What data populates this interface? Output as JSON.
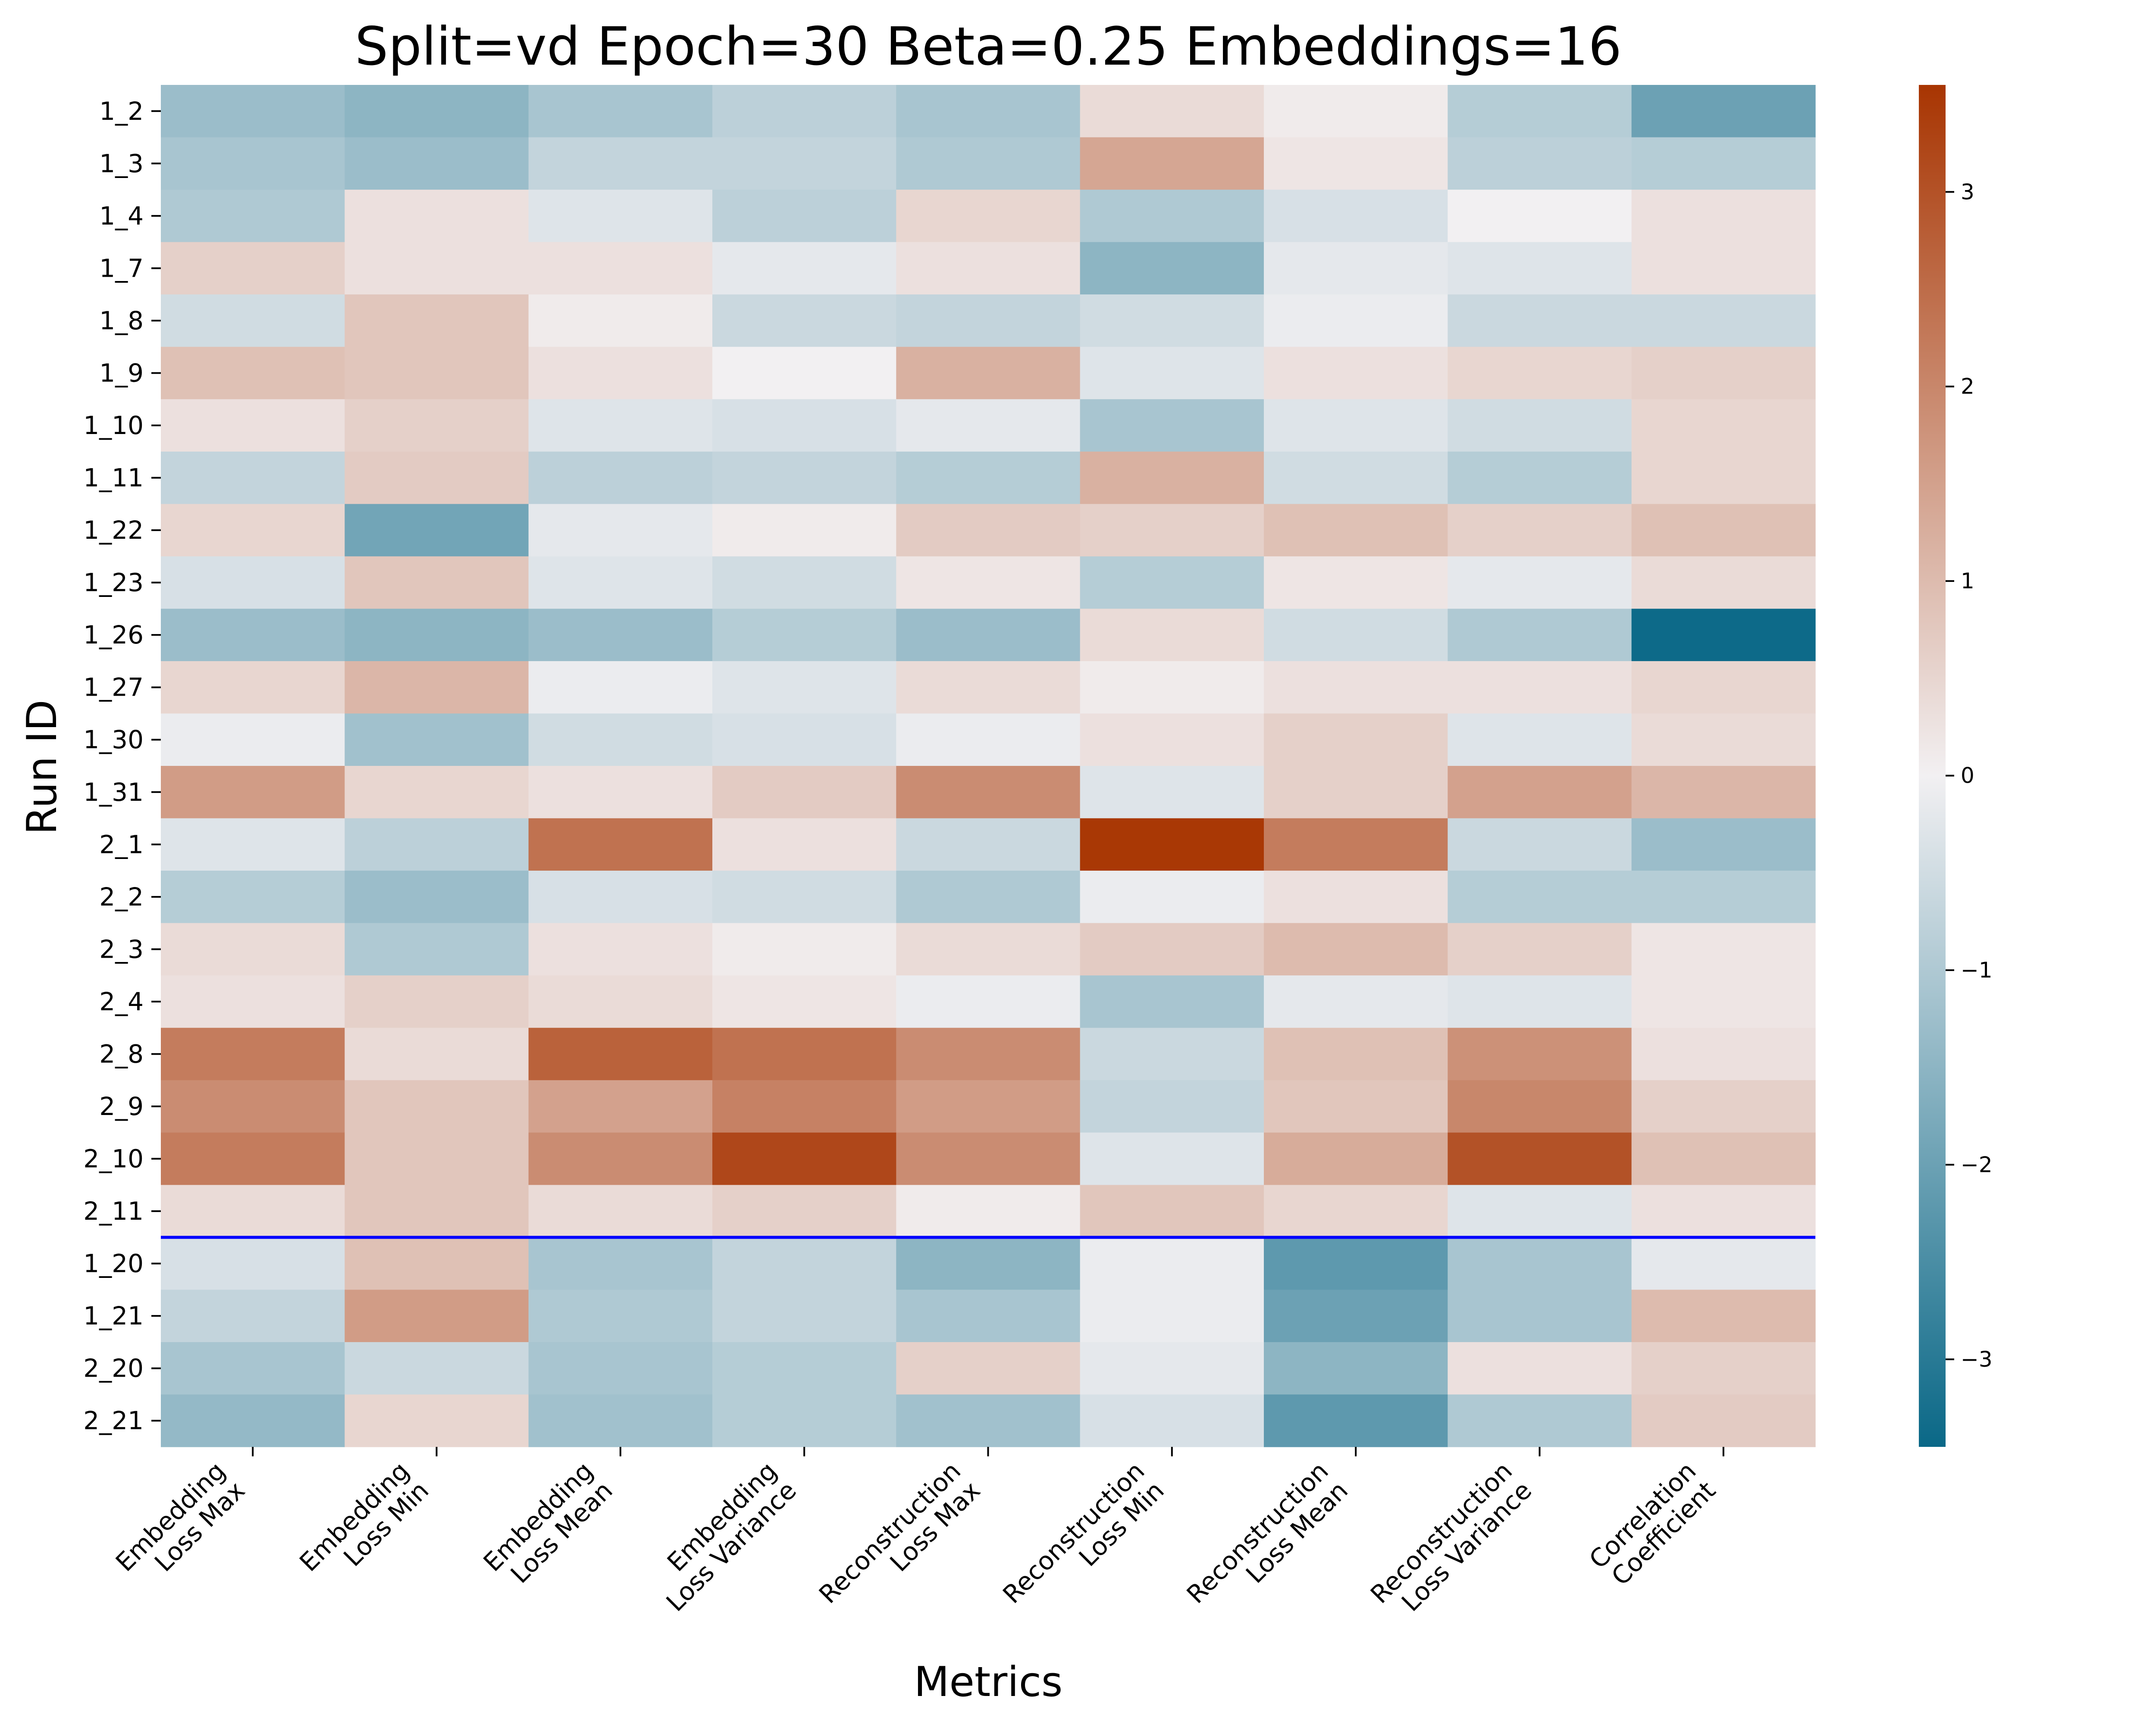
{
  "chart_data": {
    "type": "heatmap",
    "title": "Split=vd Epoch=30 Beta=0.25 Embeddings=16",
    "xlabel": "Metrics",
    "ylabel": "Run ID",
    "x_categories": [
      [
        "Embedding",
        "Loss Max"
      ],
      [
        "Embedding",
        "Loss Min"
      ],
      [
        "Embedding",
        "Loss Mean"
      ],
      [
        "Embedding",
        "Loss Variance"
      ],
      [
        "Reconstruction",
        "Loss Max"
      ],
      [
        "Reconstruction",
        "Loss Min"
      ],
      [
        "Reconstruction",
        "Loss Mean"
      ],
      [
        "Reconstruction",
        "Loss Variance"
      ],
      [
        "Correlation",
        "Coefficient"
      ]
    ],
    "y_categories": [
      "1_2",
      "1_3",
      "1_4",
      "1_7",
      "1_8",
      "1_9",
      "1_10",
      "1_11",
      "1_22",
      "1_23",
      "1_26",
      "1_27",
      "1_30",
      "1_31",
      "2_1",
      "2_2",
      "2_3",
      "2_4",
      "2_8",
      "2_9",
      "2_10",
      "2_11",
      "1_20",
      "1_21",
      "2_20",
      "2_21"
    ],
    "values": [
      [
        -1.3,
        -1.5,
        -1.1,
        -0.8,
        -1.1,
        0.4,
        0.1,
        -0.9,
        -2.0
      ],
      [
        -1.1,
        -1.3,
        -0.7,
        -0.7,
        -1.0,
        1.4,
        0.2,
        -0.8,
        -0.9
      ],
      [
        -1.0,
        0.3,
        -0.3,
        -0.8,
        0.5,
        -1.0,
        -0.4,
        0.0,
        0.3
      ],
      [
        0.6,
        0.3,
        0.3,
        -0.2,
        0.3,
        -1.5,
        -0.2,
        -0.3,
        0.3
      ],
      [
        -0.5,
        0.8,
        0.1,
        -0.6,
        -0.7,
        -0.5,
        -0.1,
        -0.6,
        -0.6
      ],
      [
        0.9,
        0.8,
        0.3,
        0.0,
        1.2,
        -0.3,
        0.3,
        0.5,
        0.6
      ],
      [
        0.3,
        0.6,
        -0.3,
        -0.4,
        -0.2,
        -1.1,
        -0.3,
        -0.5,
        0.5
      ],
      [
        -0.7,
        0.7,
        -0.8,
        -0.7,
        -0.9,
        1.2,
        -0.5,
        -0.9,
        0.5
      ],
      [
        0.5,
        -1.9,
        -0.2,
        0.1,
        0.7,
        0.6,
        0.9,
        0.6,
        0.9
      ],
      [
        -0.4,
        0.8,
        -0.3,
        -0.5,
        0.2,
        -0.9,
        0.2,
        -0.2,
        0.4
      ],
      [
        -1.3,
        -1.5,
        -1.3,
        -0.9,
        -1.3,
        0.4,
        -0.5,
        -1.0,
        -3.4
      ],
      [
        0.5,
        1.1,
        -0.1,
        -0.3,
        0.4,
        0.1,
        0.3,
        0.3,
        0.5
      ],
      [
        -0.1,
        -1.2,
        -0.5,
        -0.4,
        -0.1,
        0.3,
        0.6,
        -0.3,
        0.4
      ],
      [
        1.6,
        0.5,
        0.3,
        0.7,
        1.9,
        -0.3,
        0.6,
        1.5,
        1.1
      ],
      [
        -0.3,
        -0.8,
        2.4,
        0.3,
        -0.6,
        3.5,
        2.2,
        -0.6,
        -1.3
      ],
      [
        -0.9,
        -1.3,
        -0.4,
        -0.5,
        -1.0,
        -0.1,
        0.3,
        -0.9,
        -0.9
      ],
      [
        0.4,
        -1.0,
        0.3,
        0.1,
        0.4,
        0.7,
        1.0,
        0.6,
        0.2
      ],
      [
        0.3,
        0.6,
        0.4,
        0.2,
        -0.1,
        -1.1,
        -0.2,
        -0.3,
        0.2
      ],
      [
        2.2,
        0.4,
        2.7,
        2.4,
        1.9,
        -0.6,
        0.9,
        1.8,
        0.3
      ],
      [
        1.9,
        0.8,
        1.5,
        2.1,
        1.6,
        -0.7,
        0.8,
        2.0,
        0.6
      ],
      [
        2.2,
        0.8,
        1.9,
        3.2,
        1.9,
        -0.3,
        1.3,
        3.0,
        0.9
      ],
      [
        0.4,
        0.8,
        0.4,
        0.6,
        0.1,
        0.8,
        0.5,
        -0.3,
        0.3
      ],
      [
        -0.4,
        0.9,
        -1.1,
        -0.7,
        -1.5,
        -0.1,
        -2.2,
        -1.1,
        -0.2
      ],
      [
        -0.7,
        1.6,
        -1.0,
        -0.7,
        -1.1,
        -0.1,
        -2.0,
        -1.1,
        1.0
      ],
      [
        -1.1,
        -0.6,
        -1.1,
        -0.9,
        0.6,
        -0.2,
        -1.5,
        0.3,
        0.6
      ],
      [
        -1.4,
        0.5,
        -1.2,
        -0.9,
        -1.2,
        -0.4,
        -2.2,
        -1.0,
        0.7
      ]
    ],
    "vmin": -3.45,
    "vmax": 3.55,
    "colorbar_ticks": [
      "−3",
      "−2",
      "−1",
      "0",
      "1",
      "2",
      "3"
    ],
    "colorbar_tick_values": [
      -3,
      -2,
      -1,
      0,
      1,
      2,
      3
    ],
    "colormap": {
      "low": "#0a6887",
      "mid": "#f2f0f2",
      "high": "#a83502"
    },
    "separator_after_row": "2_11",
    "separator_color": "#0000ff",
    "grid": false,
    "legend": "colorbar-right"
  }
}
